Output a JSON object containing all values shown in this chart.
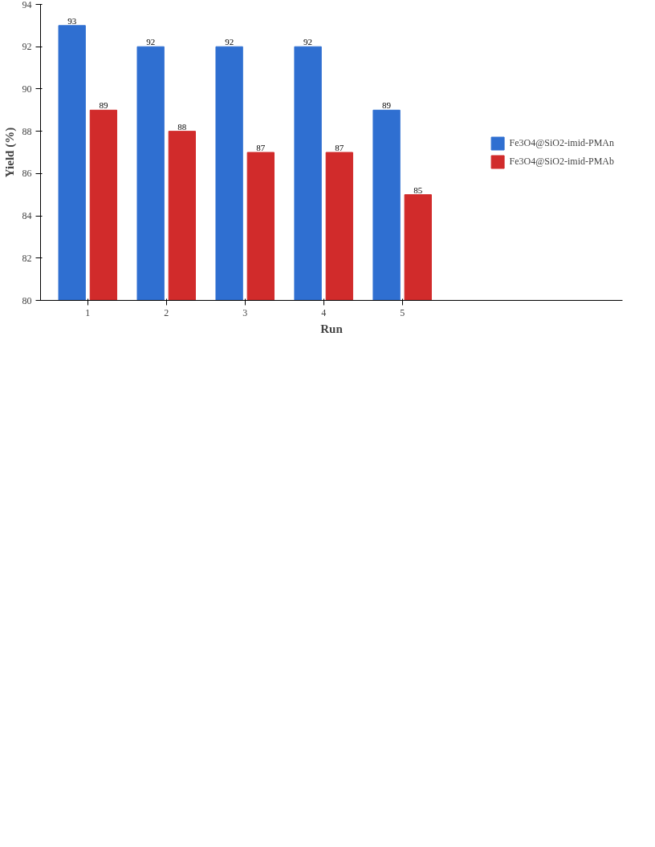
{
  "chart_data": {
    "type": "bar",
    "xlabel": "Run",
    "ylabel": "Yield (%)",
    "categories": [
      "1",
      "2",
      "3",
      "4",
      "5"
    ],
    "series": [
      {
        "name": "Fe3O4@SiO2-imid-PMAn",
        "color": "#2f6fd1",
        "values": [
          93,
          92,
          92,
          92,
          89
        ]
      },
      {
        "name": "Fe3O4@SiO2-imid-PMAb",
        "color": "#d12b2b",
        "values": [
          89,
          88,
          87,
          87,
          85
        ]
      }
    ],
    "ylim": [
      80,
      94
    ],
    "yticks": [
      80,
      82,
      84,
      86,
      88,
      90,
      92,
      94
    ],
    "data_labels": true,
    "grid": false,
    "legend": "right"
  }
}
